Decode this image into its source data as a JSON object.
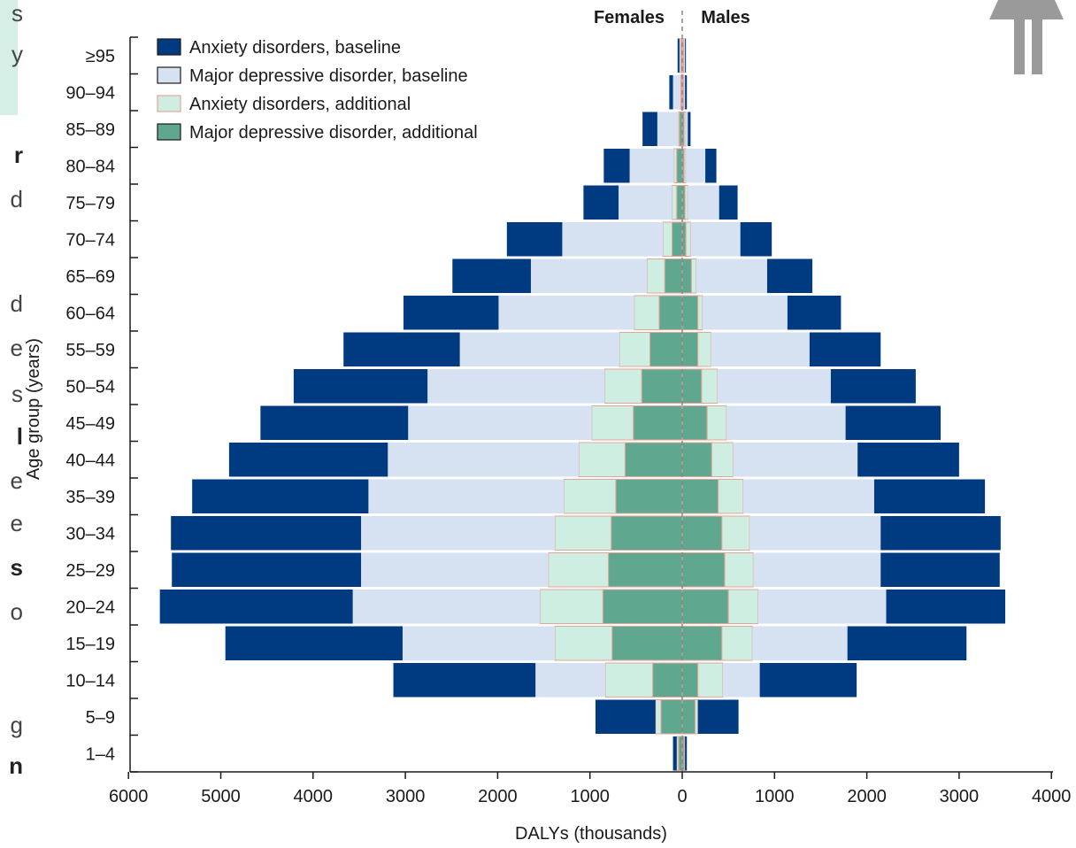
{
  "side_text_fragments": [
    "s",
    "y",
    "r",
    "d",
    "d",
    "e",
    "s",
    "l",
    "e",
    "e",
    "s",
    "o",
    "g",
    "n"
  ],
  "chart_data": {
    "type": "bar",
    "orientation": "horizontal",
    "layout": "population-pyramid",
    "title": "",
    "xlabel": "DALYs (thousands)",
    "ylabel": "Age group (years)",
    "side_labels": {
      "left": "Females",
      "right": "Males"
    },
    "xlim": [
      -6000,
      4000
    ],
    "x_tick_labels": [
      "6000",
      "5000",
      "4000",
      "3000",
      "2000",
      "1000",
      "0",
      "1000",
      "2000",
      "3000",
      "4000"
    ],
    "x_tick_values": [
      -6000,
      -5000,
      -4000,
      -3000,
      -2000,
      -1000,
      0,
      1000,
      2000,
      3000,
      4000
    ],
    "categories": [
      "≥95",
      "90–94",
      "85–89",
      "80–84",
      "75–79",
      "70–74",
      "65–69",
      "60–64",
      "55–59",
      "50–54",
      "45–49",
      "40–44",
      "35–39",
      "30–34",
      "25–29",
      "20–24",
      "15–19",
      "10–14",
      "5–9",
      "1–4"
    ],
    "legend": {
      "position": "top-left",
      "entries": [
        {
          "label": "Anxiety disorders, baseline",
          "color": "#003a80"
        },
        {
          "label": "Major depressive disorder, baseline",
          "color": "#d6e1f2"
        },
        {
          "label": "Anxiety disorders, additional",
          "color": "#cfeee2"
        },
        {
          "label": "Major depressive disorder, additional",
          "color": "#5fa78f"
        }
      ]
    },
    "colors": {
      "anxiety_baseline": "#003a80",
      "mdd_baseline": "#d6e1f2",
      "anxiety_additional": "#cfeee2",
      "mdd_additional": "#5fa78f",
      "additional_outline": "#e4a59a",
      "zero_line": "#888888"
    },
    "series_order_from_center": [
      "Major depressive disorder, additional",
      "Anxiety disorders, additional",
      "Major depressive disorder, baseline",
      "Anxiety disorders, baseline"
    ],
    "females": {
      "Major depressive disorder, additional": [
        10,
        10,
        30,
        60,
        60,
        110,
        190,
        250,
        350,
        440,
        530,
        620,
        720,
        770,
        800,
        860,
        760,
        320,
        230,
        40
      ],
      "Anxiety disorders, additional": [
        10,
        10,
        10,
        30,
        50,
        100,
        190,
        270,
        330,
        400,
        450,
        500,
        560,
        610,
        650,
        680,
        620,
        510,
        60,
        20
      ],
      "Major depressive disorder, baseline": [
        10,
        80,
        230,
        480,
        580,
        1090,
        1260,
        1470,
        1730,
        1920,
        1990,
        2070,
        2120,
        2100,
        2030,
        2030,
        1650,
        760,
        0,
        0
      ],
      "Anxiety disorders, baseline": [
        20,
        40,
        160,
        280,
        380,
        600,
        850,
        1030,
        1260,
        1450,
        1600,
        1720,
        1910,
        2060,
        2050,
        2090,
        1920,
        1540,
        650,
        40
      ]
    },
    "males": {
      "Major depressive disorder, additional": [
        10,
        10,
        20,
        20,
        30,
        40,
        100,
        170,
        170,
        210,
        270,
        320,
        390,
        430,
        460,
        500,
        430,
        170,
        140,
        20
      ],
      "Anxiety disorders, additional": [
        10,
        10,
        20,
        20,
        30,
        50,
        50,
        50,
        140,
        170,
        210,
        230,
        270,
        300,
        310,
        320,
        330,
        270,
        30,
        10
      ],
      "Major depressive disorder, baseline": [
        10,
        10,
        20,
        210,
        340,
        540,
        770,
        920,
        1070,
        1230,
        1290,
        1350,
        1420,
        1420,
        1380,
        1390,
        1030,
        400,
        0,
        0
      ],
      "Anxiety disorders, baseline": [
        10,
        20,
        30,
        120,
        200,
        340,
        490,
        580,
        770,
        920,
        1030,
        1100,
        1200,
        1300,
        1290,
        1290,
        1290,
        1050,
        440,
        20
      ]
    }
  }
}
